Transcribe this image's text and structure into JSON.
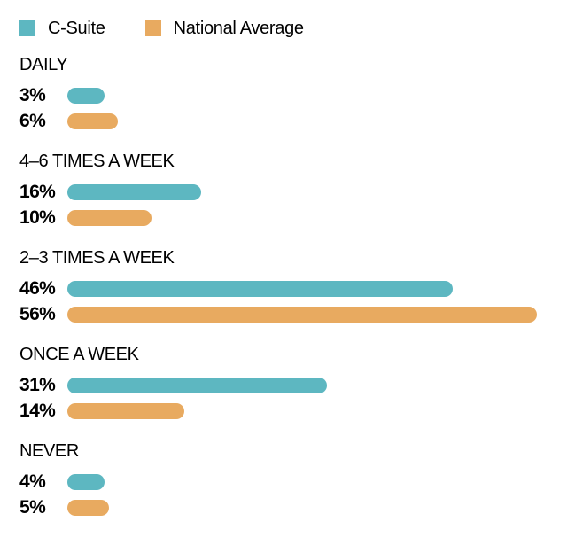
{
  "legend": {
    "items": [
      {
        "label": "C-Suite",
        "color": "#5db7c1"
      },
      {
        "label": "National Average",
        "color": "#e8aa60"
      }
    ]
  },
  "chart_data": {
    "type": "bar",
    "orientation": "horizontal",
    "title": "",
    "categories": [
      "DAILY",
      "4–6 TIMES A WEEK",
      "2–3 TIMES A WEEK",
      "ONCE A WEEK",
      "NEVER"
    ],
    "series": [
      {
        "name": "C-Suite",
        "color": "#5db7c1",
        "values": [
          3,
          16,
          46,
          31,
          4
        ]
      },
      {
        "name": "National Average",
        "color": "#e8aa60",
        "values": [
          6,
          10,
          56,
          14,
          5
        ]
      }
    ],
    "value_labels": [
      [
        "3%",
        "6%"
      ],
      [
        "16%",
        "10%"
      ],
      [
        "46%",
        "56%"
      ],
      [
        "31%",
        "14%"
      ],
      [
        "4%",
        "5%"
      ]
    ],
    "value_suffix": "%",
    "xlim": [
      0,
      60
    ],
    "grid": false,
    "axis_ticks_visible": false,
    "legend_position": "top"
  },
  "colors": {
    "background": "#ffffff",
    "text": "#000000",
    "teal": "#5db7c1",
    "orange": "#e8aa60"
  }
}
